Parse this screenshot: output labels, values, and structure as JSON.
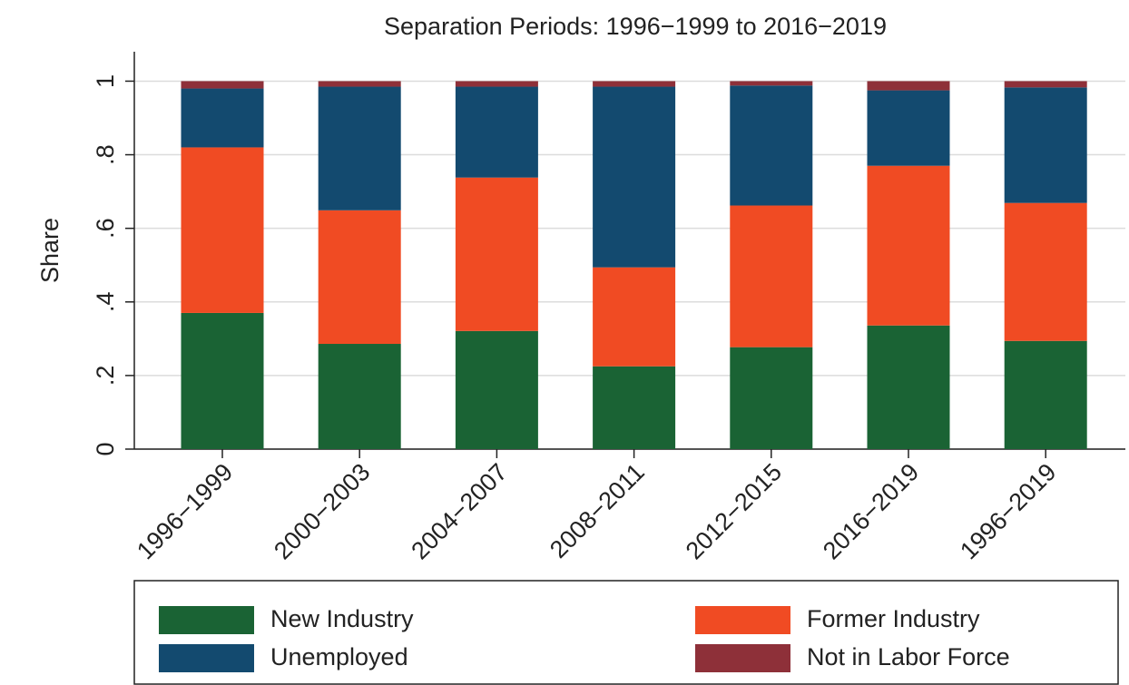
{
  "chart_data": {
    "type": "stacked_bar",
    "title": "Separation Periods: 1996−1999 to 2016−2019",
    "y_label": "Share",
    "categories": [
      "1996−1999",
      "2000−2003",
      "2004−2007",
      "2008−2011",
      "2012−2015",
      "2016−2019",
      "1996−2019"
    ],
    "series": [
      {
        "name": "New Industry",
        "color": "#1a6334",
        "values": [
          0.37,
          0.286,
          0.321,
          0.225,
          0.277,
          0.336,
          0.294
        ]
      },
      {
        "name": "Former Industry",
        "color": "#f04b23",
        "values": [
          0.45,
          0.363,
          0.417,
          0.269,
          0.385,
          0.434,
          0.375
        ]
      },
      {
        "name": "Unemployed",
        "color": "#134a6f",
        "values": [
          0.16,
          0.336,
          0.247,
          0.491,
          0.326,
          0.205,
          0.314
        ]
      },
      {
        "name": "Not in Labor Force",
        "color": "#8e3039",
        "values": [
          0.02,
          0.015,
          0.015,
          0.015,
          0.012,
          0.025,
          0.017
        ]
      }
    ],
    "ylim": [
      0,
      1.08
    ],
    "yticks": [
      0,
      {
        "value": 0.2,
        "label": ".2"
      },
      {
        "value": 0.4,
        "label": ".4"
      },
      {
        "value": 0.6,
        "label": ".6"
      },
      {
        "value": 0.8,
        "label": ".8"
      },
      1
    ],
    "grid": true,
    "legend": "bottom"
  }
}
